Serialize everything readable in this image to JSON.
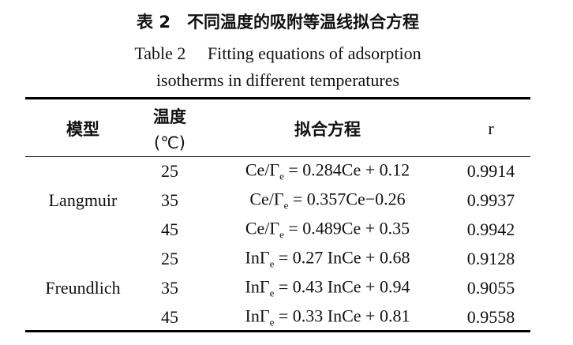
{
  "caption": {
    "title_zh": "表 2　不同温度的吸附等温线拟合方程",
    "title_en_lines": [
      "Table 2　 Fitting equations of adsorption",
      "isotherms in different temperatures"
    ]
  },
  "table": {
    "header": {
      "model": "模型",
      "temperature": [
        "温度",
        "(℃)"
      ],
      "equation": "拟合方程",
      "r": "r"
    },
    "groups": [
      {
        "model": "Langmuir",
        "rows": [
          {
            "temperature": "25",
            "equation": {
              "lhs": "Ce/Γ",
              "sub": "e",
              "rhs": "= 0.284Ce + 0.12"
            },
            "r": "0.9914"
          },
          {
            "temperature": "35",
            "equation": {
              "lhs": "Ce/Γ",
              "sub": "e",
              "rhs": "= 0.357Ce−0.26"
            },
            "r": "0.9937"
          },
          {
            "temperature": "45",
            "equation": {
              "lhs": "Ce/Γ",
              "sub": "e",
              "rhs": "= 0.489Ce + 0.35"
            },
            "r": "0.9942"
          }
        ]
      },
      {
        "model": "Freundlich",
        "rows": [
          {
            "temperature": "25",
            "equation": {
              "lhs": "InΓ",
              "sub": "e",
              "rhs": "= 0.27 InCe + 0.68"
            },
            "r": "0.9128"
          },
          {
            "temperature": "35",
            "equation": {
              "lhs": "InΓ",
              "sub": "e",
              "rhs": "= 0.43 InCe + 0.94"
            },
            "r": "0.9055"
          },
          {
            "temperature": "45",
            "equation": {
              "lhs": "InΓ",
              "sub": "e",
              "rhs": "= 0.33 InCe + 0.81"
            },
            "r": "0.9558"
          }
        ]
      }
    ]
  }
}
